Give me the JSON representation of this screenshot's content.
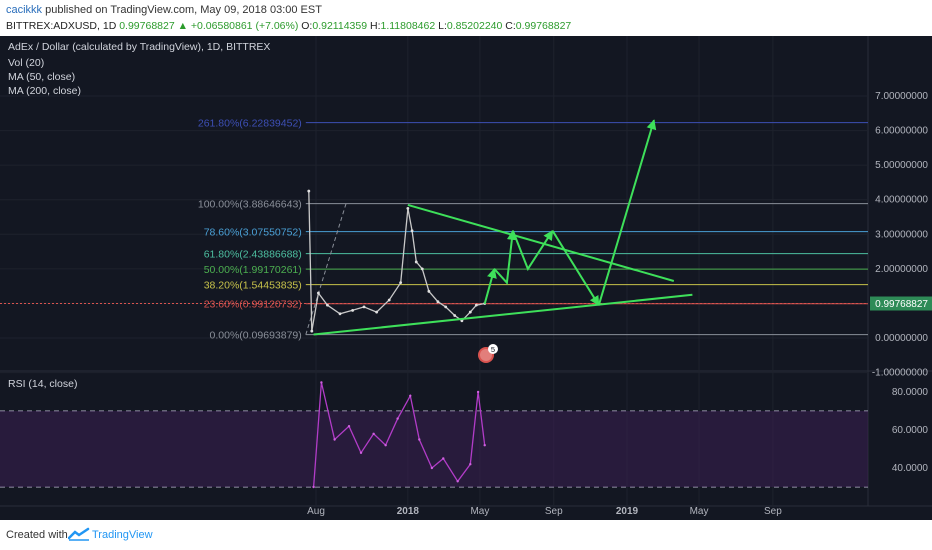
{
  "header": {
    "publisher": "cacikkk",
    "published_text": "published on TradingView.com, May 09, 2018 03:00 EST",
    "symbol": "BITTREX:ADXUSD, 1D",
    "last": "0.99768827",
    "change": "▲ +0.06580861 (+7.06%)",
    "o_label": "O:",
    "o": "0.92114359",
    "h_label": "H:",
    "h": "1.11808462",
    "l_label": "L:",
    "l": "0.85202240",
    "c_label": "C:",
    "c": "0.99768827"
  },
  "legend": {
    "title": "AdEx / Dollar (calculated by TradingView), 1D, BITTREX",
    "items": [
      "Vol (20)",
      "MA (50, close)",
      "MA (200, close)"
    ]
  },
  "rsi": {
    "label": "RSI (14, close)",
    "ticks": [
      "80.0000",
      "60.0000",
      "40.0000"
    ]
  },
  "price_axis": {
    "ticks": [
      "7.00000000",
      "6.00000000",
      "5.00000000",
      "4.00000000",
      "3.00000000",
      "2.00000000",
      "1.00000000",
      "0.00000000",
      "-1.00000000"
    ],
    "current": "0.99768827"
  },
  "time_axis": [
    "Aug",
    "2018",
    "May",
    "Sep",
    "2019",
    "May",
    "Sep"
  ],
  "fib_levels": [
    {
      "label": "261.80%(6.22839452)",
      "value": 6.22839452,
      "color": "#3d4fb5"
    },
    {
      "label": "100.00%(3.88646643)",
      "value": 3.88646643,
      "color": "#8a8f99"
    },
    {
      "label": "78.60%(3.07550752)",
      "value": 3.07550752,
      "color": "#4aa0d6"
    },
    {
      "label": "61.80%(2.43886688)",
      "value": 2.43886688,
      "color": "#4dbfa0"
    },
    {
      "label": "50.00%(1.99170261)",
      "value": 1.99170261,
      "color": "#4caf50"
    },
    {
      "label": "38.20%(1.54453835)",
      "value": 1.54453835,
      "color": "#c7c24a"
    },
    {
      "label": "23.60%(0.99120732)",
      "value": 0.99120732,
      "color": "#d9534f"
    },
    {
      "label": "0.00%(0.09693879)",
      "value": 0.09693879,
      "color": "#8a8f99"
    }
  ],
  "event_badge": "5",
  "footer": {
    "created": "Created with",
    "brand": "TradingView"
  },
  "chart_data": {
    "type": "line",
    "title": "AdEx / Dollar (calculated by TradingView), 1D, BITTREX",
    "ylim": [
      -1.9,
      7.5
    ],
    "x": [
      "2017-07-20",
      "2017-07-25",
      "2017-08-05",
      "2017-08-20",
      "2017-09-10",
      "2017-10-01",
      "2017-10-20",
      "2017-11-10",
      "2017-12-01",
      "2017-12-20",
      "2018-01-01",
      "2018-01-08",
      "2018-01-15",
      "2018-01-25",
      "2018-02-05",
      "2018-02-20",
      "2018-03-05",
      "2018-03-20",
      "2018-04-01",
      "2018-04-15",
      "2018-04-25",
      "2018-05-09"
    ],
    "series": [
      {
        "values": [
          4.25,
          0.2,
          1.3,
          0.95,
          0.7,
          0.8,
          0.9,
          0.75,
          1.1,
          1.6,
          3.75,
          3.1,
          2.2,
          2.0,
          1.35,
          1.05,
          0.9,
          0.65,
          0.5,
          0.75,
          0.95,
          0.998
        ]
      }
    ],
    "rsi": {
      "ylim": [
        25,
        90
      ],
      "x": [
        "2017-07-28",
        "2017-08-10",
        "2017-09-01",
        "2017-09-25",
        "2017-10-15",
        "2017-11-05",
        "2017-11-25",
        "2017-12-15",
        "2018-01-05",
        "2018-01-20",
        "2018-02-10",
        "2018-03-01",
        "2018-03-25",
        "2018-04-15",
        "2018-04-28",
        "2018-05-09"
      ],
      "values": [
        30,
        85,
        55,
        62,
        48,
        58,
        52,
        66,
        78,
        55,
        40,
        45,
        33,
        42,
        80,
        52
      ]
    },
    "projection_arrows": [
      {
        "points": [
          [
            "2018-05-09",
            0.99
          ],
          [
            "2018-05-25",
            2.0
          ]
        ]
      },
      {
        "points": [
          [
            "2018-05-25",
            2.0
          ],
          [
            "2018-06-15",
            1.6
          ],
          [
            "2018-06-25",
            3.1
          ]
        ]
      },
      {
        "points": [
          [
            "2018-06-25",
            3.1
          ],
          [
            "2018-07-20",
            2.0
          ],
          [
            "2018-08-30",
            3.1
          ]
        ]
      },
      {
        "points": [
          [
            "2018-08-30",
            3.1
          ],
          [
            "2018-11-15",
            0.95
          ]
        ]
      },
      {
        "points": [
          [
            "2018-11-15",
            0.95
          ],
          [
            "2019-02-15",
            6.3
          ]
        ]
      }
    ],
    "trendlines": [
      {
        "points": [
          [
            "2018-01-01",
            3.85
          ],
          [
            "2019-03-20",
            1.65
          ]
        ]
      },
      {
        "points": [
          [
            "2017-07-28",
            0.1
          ],
          [
            "2019-04-20",
            1.25
          ]
        ]
      }
    ]
  }
}
